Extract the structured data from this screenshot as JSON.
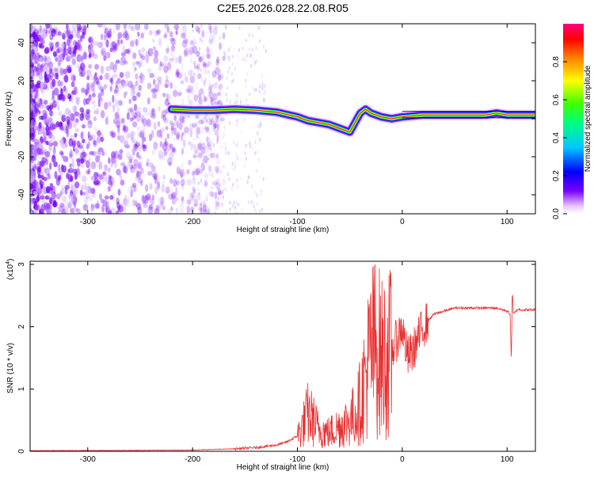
{
  "title": "C2E5.2026.028.22.08.R05",
  "colors": {
    "axis": "#000000",
    "snr_line": "#e83030",
    "noise_dot": "#7a00ff",
    "ridge": "#ff2020"
  },
  "chart_data": [
    {
      "type": "heatmap",
      "name": "spectrogram",
      "xlabel": "Height of straight line (km)",
      "ylabel": "Frequency (Hz)",
      "xlim": [
        -355,
        127
      ],
      "ylim": [
        -50,
        50
      ],
      "x_ticks": [
        -300,
        -200,
        -100,
        0,
        100
      ],
      "x_tick_labels": [
        "-300",
        "-200",
        "-100",
        "0",
        "100"
      ],
      "y_ticks": [
        -40,
        -20,
        0,
        20,
        40
      ],
      "y_tick_labels": [
        "-40",
        "-20",
        "0",
        "20",
        "40"
      ],
      "colorbar": {
        "label": "Normalized spectral amplitude",
        "range": [
          0,
          1
        ],
        "ticks": [
          0.0,
          0.2,
          0.4,
          0.6,
          0.8
        ],
        "tick_labels": [
          "0.0",
          "0.2",
          "0.4",
          "0.6",
          "0.8"
        ]
      },
      "ridge": {
        "x": [
          -220,
          -200,
          -180,
          -160,
          -140,
          -120,
          -100,
          -90,
          -80,
          -70,
          -60,
          -50,
          -45,
          -40,
          -35,
          -30,
          -25,
          -20,
          -10,
          0,
          20,
          40,
          60,
          80,
          90,
          100,
          110,
          127
        ],
        "y": [
          5,
          4.5,
          4.5,
          5,
          4.5,
          3.5,
          1,
          -1,
          -2,
          -3,
          -5,
          -7,
          -2,
          3,
          5,
          3,
          2,
          1,
          0,
          1,
          2,
          2,
          2,
          2,
          3,
          2,
          2,
          2
        ]
      }
    },
    {
      "type": "line",
      "name": "snr",
      "xlabel": "Height of straight line (km)",
      "ylabel": "SNR (10 * v/v)",
      "multiplier": "(x10",
      "multiplier_exp": "4",
      "xlim": [
        -355,
        127
      ],
      "ylim": [
        0,
        3.05
      ],
      "x_ticks": [
        -300,
        -200,
        -100,
        0,
        100
      ],
      "x_tick_labels": [
        "-300",
        "-200",
        "-100",
        "0",
        "100"
      ],
      "y_ticks": [
        0,
        1,
        2,
        3
      ],
      "y_tick_labels": [
        "0",
        "1",
        "2",
        "3"
      ],
      "series": [
        {
          "name": "SNR",
          "x": [
            -355,
            -250,
            -200,
            -180,
            -160,
            -140,
            -120,
            -110,
            -100,
            -95,
            -90,
            -85,
            -80,
            -70,
            -60,
            -50,
            -45,
            -40,
            -35,
            -30,
            -25,
            -20,
            -15,
            -10,
            -5,
            0,
            5,
            10,
            15,
            20,
            25,
            30,
            40,
            50,
            60,
            70,
            80,
            90,
            100,
            103,
            104,
            105,
            106,
            110,
            115,
            127
          ],
          "y": [
            0.01,
            0.015,
            0.02,
            0.03,
            0.04,
            0.06,
            0.1,
            0.15,
            0.25,
            0.4,
            0.6,
            0.5,
            0.35,
            0.3,
            0.4,
            0.5,
            0.6,
            0.8,
            1.2,
            1.6,
            1.7,
            1.5,
            1.5,
            1.6,
            1.8,
            2.0,
            1.5,
            1.6,
            1.8,
            2.0,
            2.1,
            2.2,
            2.25,
            2.3,
            2.3,
            2.3,
            2.3,
            2.3,
            2.25,
            2.2,
            1.4,
            2.6,
            2.2,
            2.28,
            2.27,
            2.27
          ]
        }
      ]
    }
  ]
}
